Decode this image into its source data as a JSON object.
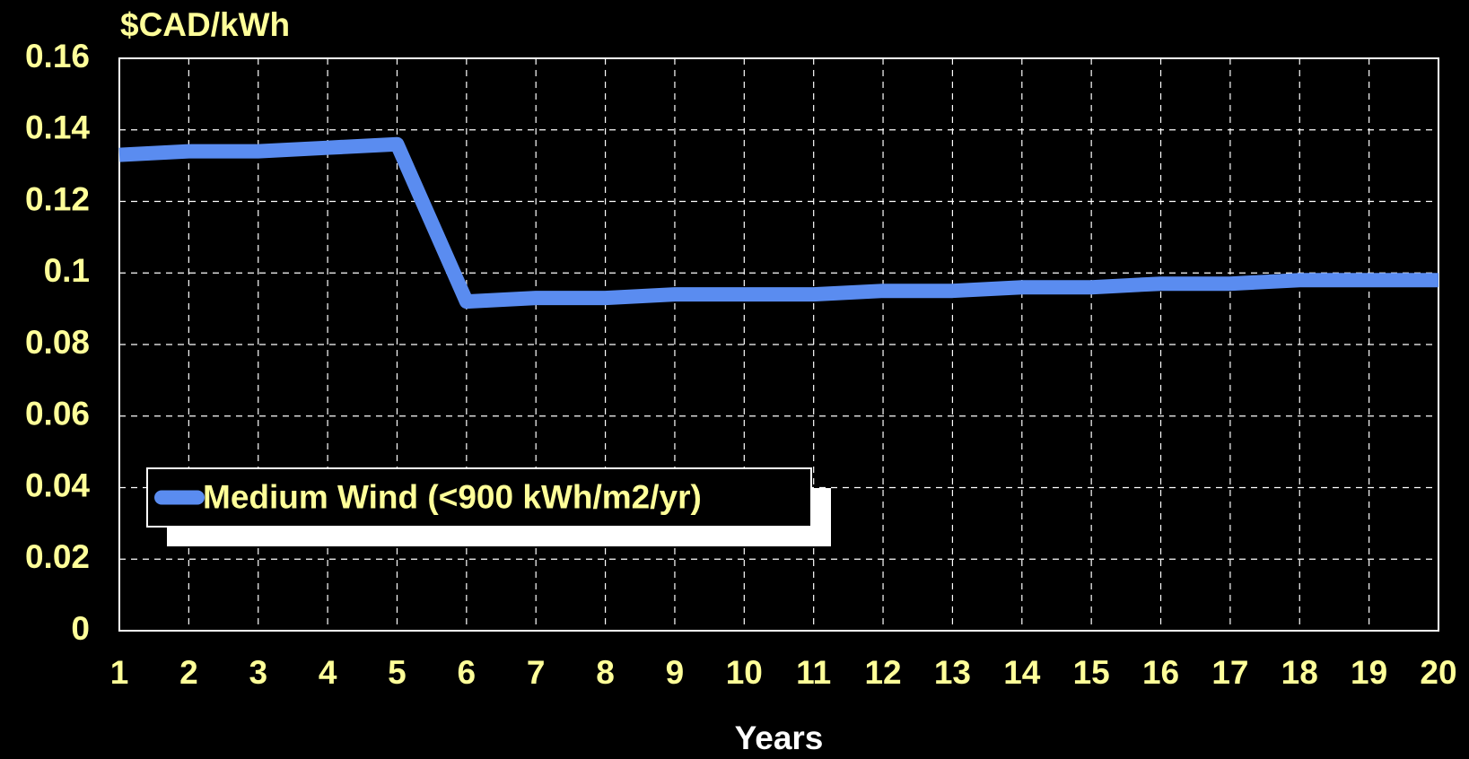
{
  "chart_data": {
    "type": "line",
    "y_axis_label": "$CAD/kWh",
    "x_axis_label": "Years",
    "x": [
      1,
      2,
      3,
      4,
      5,
      6,
      7,
      8,
      9,
      10,
      11,
      12,
      13,
      14,
      15,
      16,
      17,
      18,
      19,
      20
    ],
    "series": [
      {
        "name": "Medium Wind (<900 kWh/m2/yr)",
        "color": "#5a8cf0",
        "values": [
          0.133,
          0.134,
          0.134,
          0.135,
          0.136,
          0.092,
          0.093,
          0.093,
          0.094,
          0.094,
          0.094,
          0.095,
          0.095,
          0.096,
          0.096,
          0.097,
          0.097,
          0.098,
          0.098,
          0.098
        ]
      }
    ],
    "xlim": [
      1,
      20
    ],
    "xticks": [
      1,
      2,
      3,
      4,
      5,
      6,
      7,
      8,
      9,
      10,
      11,
      12,
      13,
      14,
      15,
      16,
      17,
      18,
      19,
      20
    ],
    "ylim": [
      0,
      0.16
    ],
    "yticks": [
      0,
      0.02,
      0.04,
      0.06,
      0.08,
      0.1,
      0.12,
      0.14,
      0.16
    ],
    "grid": true,
    "legend": "lower left"
  }
}
